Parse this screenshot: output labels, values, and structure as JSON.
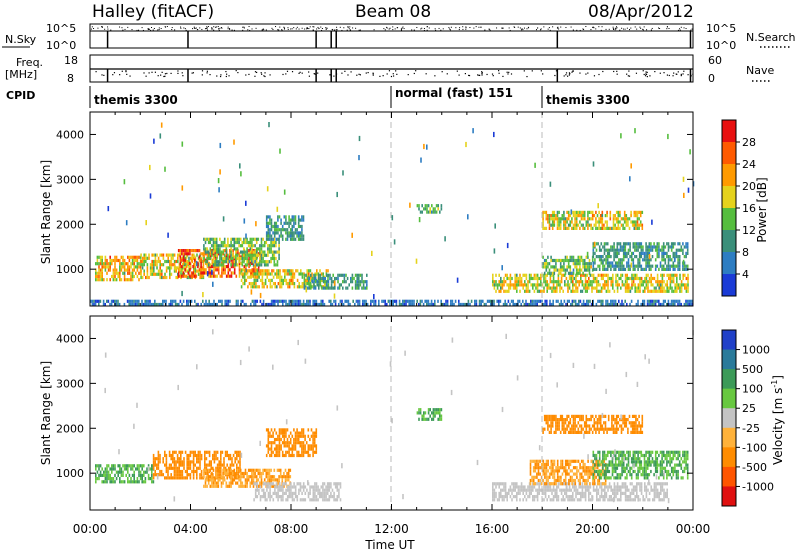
{
  "header": {
    "station": "Halley (fitACF)",
    "beam": "Beam 08",
    "date": "08/Apr/2012"
  },
  "nsky_panel": {
    "left_label": "N.Sky",
    "left_ticks": [
      "10^5",
      "10^0"
    ],
    "right_ticks": [
      "10^5",
      "10^0"
    ],
    "right_label": "N.Search",
    "markers_hours": [
      0.7,
      3.9,
      9.0,
      9.6,
      9.8,
      18.6,
      23.9
    ]
  },
  "freq_panel": {
    "left_label_1": "Freq.",
    "left_label_2": "[MHz]",
    "left_ticks": [
      "18",
      "8"
    ],
    "right_ticks": [
      "60",
      "0"
    ],
    "right_label": "Nave",
    "markers_hours": [
      0.7,
      3.9,
      9.0,
      9.6,
      9.8,
      18.6,
      23.9
    ]
  },
  "cpid": {
    "label": "CPID",
    "segments": [
      {
        "name": "themis 3300",
        "start_hour": 0
      },
      {
        "name": "normal (fast) 151",
        "start_hour": 12.0
      },
      {
        "name": "themis 3300",
        "start_hour": 18.0
      }
    ]
  },
  "x_axis": {
    "label": "Time UT",
    "ticks": [
      "00:00",
      "04:00",
      "08:00",
      "12:00",
      "16:00",
      "20:00",
      "00:00"
    ],
    "range_hours": [
      0,
      24
    ]
  },
  "power_panel": {
    "ylabel": "Slant Range [km]",
    "yticks": [
      "1000",
      "2000",
      "3000",
      "4000"
    ],
    "colorbar_label": "Power [dB]",
    "colorbar_ticks": [
      "4",
      "8",
      "12",
      "16",
      "20",
      "24",
      "28"
    ],
    "colors": [
      "#1a3bd6",
      "#2d7dc2",
      "#3a8f7a",
      "#55bd3e",
      "#e5d21c",
      "#ff9a00",
      "#ff5a00",
      "#e81010"
    ]
  },
  "velocity_panel": {
    "ylabel": "Slant Range [km]",
    "yticks": [
      "1000",
      "2000",
      "3000",
      "4000"
    ],
    "colorbar_label": "Velocity [m s",
    "colorbar_label_sup": "-1",
    "colorbar_label_end": "]",
    "colorbar_ticks": [
      "1000",
      "500",
      "100",
      "25",
      "-25",
      "-100",
      "-500",
      "-1000"
    ],
    "colors": [
      "#2040c8",
      "#2a7a9a",
      "#3c9a58",
      "#68c840",
      "#c4c4c4",
      "#ffb23a",
      "#ff8c00",
      "#ff5500",
      "#e01010"
    ]
  },
  "chart_data": {
    "type": "heatmap",
    "x_unit": "hours UT",
    "y_unit": "km",
    "y_range": [
      180,
      4500
    ],
    "power_regions": [
      {
        "t0": 0.2,
        "t1": 2.0,
        "r0": 800,
        "r1": 1300,
        "val": 20
      },
      {
        "t0": 2.0,
        "t1": 4.5,
        "r0": 850,
        "r1": 1350,
        "val": 18
      },
      {
        "t0": 3.5,
        "t1": 6.8,
        "r0": 850,
        "r1": 1450,
        "val": 26
      },
      {
        "t0": 4.5,
        "t1": 7.5,
        "r0": 1100,
        "r1": 1700,
        "val": 14
      },
      {
        "t0": 6.0,
        "t1": 9.5,
        "r0": 600,
        "r1": 1000,
        "val": 18
      },
      {
        "t0": 8.5,
        "t1": 11.0,
        "r0": 600,
        "r1": 900,
        "val": 10
      },
      {
        "t0": 7.0,
        "t1": 8.5,
        "r0": 1700,
        "r1": 2200,
        "val": 10
      },
      {
        "t0": 13.0,
        "t1": 14.0,
        "r0": 2250,
        "r1": 2450,
        "val": 12
      },
      {
        "t0": 16.0,
        "t1": 23.8,
        "r0": 500,
        "r1": 900,
        "val": 18
      },
      {
        "t0": 18.0,
        "t1": 20.0,
        "r0": 900,
        "r1": 1300,
        "val": 14
      },
      {
        "t0": 18.0,
        "t1": 22.0,
        "r0": 1900,
        "r1": 2300,
        "val": 18
      },
      {
        "t0": 20.0,
        "t1": 23.8,
        "r0": 1000,
        "r1": 1600,
        "val": 10
      },
      {
        "t0": 0.0,
        "t1": 24.0,
        "r0": 200,
        "r1": 320,
        "val": 6
      }
    ],
    "velocity_regions": [
      {
        "t0": 0.2,
        "t1": 2.5,
        "r0": 800,
        "r1": 1200,
        "val": 100
      },
      {
        "t0": 2.5,
        "t1": 6.0,
        "r0": 900,
        "r1": 1500,
        "val": -300
      },
      {
        "t0": 4.5,
        "t1": 8.0,
        "r0": 700,
        "r1": 1100,
        "val": -100
      },
      {
        "t0": 7.0,
        "t1": 9.0,
        "r0": 1400,
        "r1": 2000,
        "val": -300
      },
      {
        "t0": 6.5,
        "t1": 10.0,
        "r0": 400,
        "r1": 800,
        "val": 0
      },
      {
        "t0": 13.0,
        "t1": 14.0,
        "r0": 2200,
        "r1": 2450,
        "val": 100
      },
      {
        "t0": 16.0,
        "t1": 23.0,
        "r0": 400,
        "r1": 800,
        "val": 0
      },
      {
        "t0": 17.5,
        "t1": 20.5,
        "r0": 800,
        "r1": 1300,
        "val": -100
      },
      {
        "t0": 18.0,
        "t1": 22.0,
        "r0": 1900,
        "r1": 2300,
        "val": -300
      },
      {
        "t0": 20.0,
        "t1": 23.8,
        "r0": 900,
        "r1": 1500,
        "val": 100
      }
    ]
  }
}
